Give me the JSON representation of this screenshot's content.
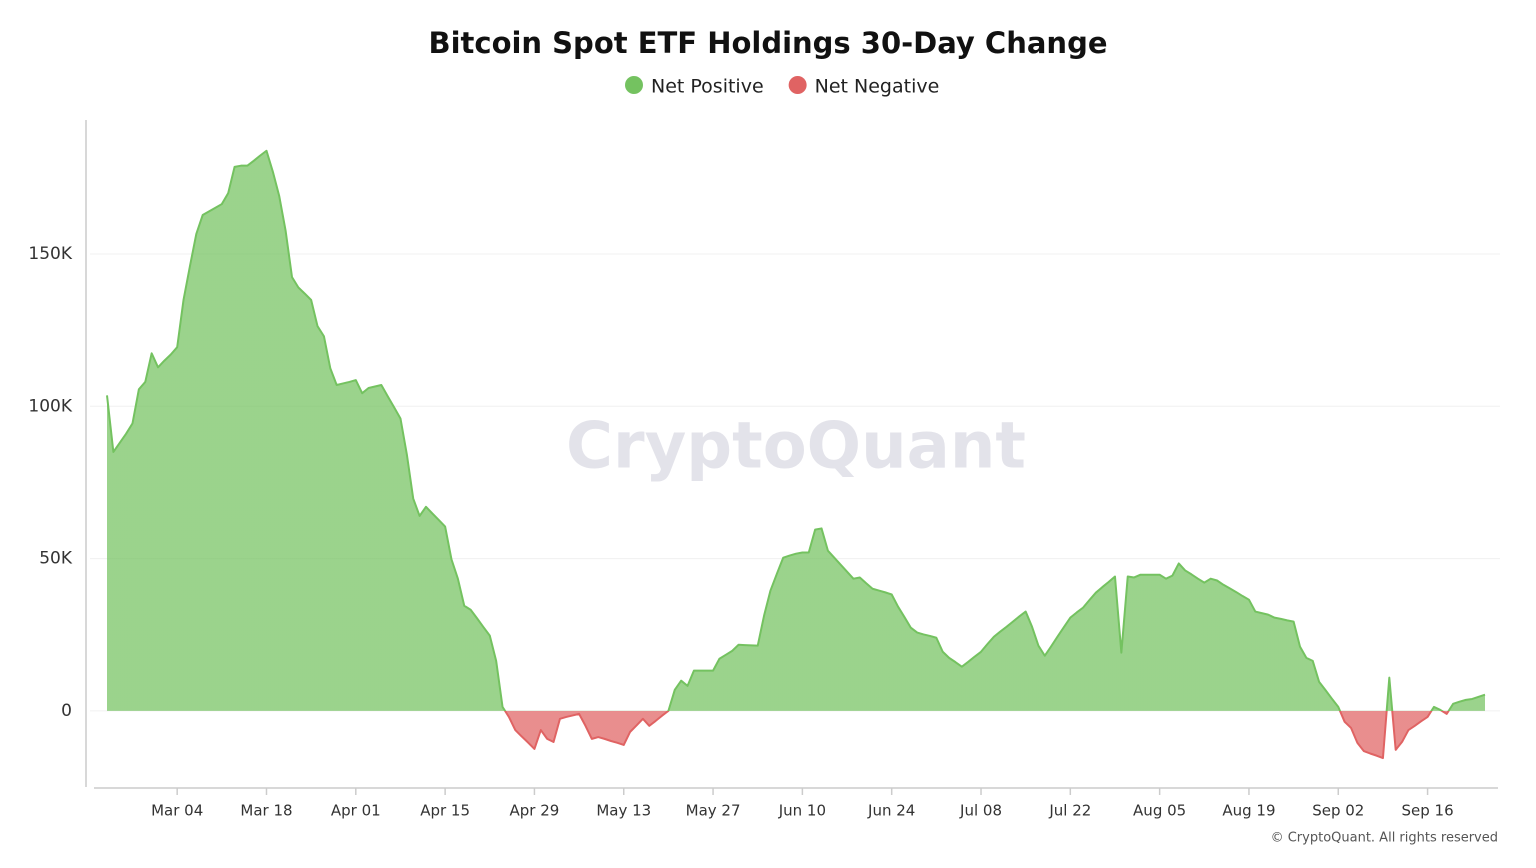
{
  "chart_data": {
    "type": "area",
    "title": "Bitcoin Spot ETF Holdings 30-Day Change",
    "legend": [
      {
        "name": "Net Positive",
        "color": "#74c260"
      },
      {
        "name": "Net Negative",
        "color": "#e06363"
      }
    ],
    "watermark": "CryptoQuant",
    "credit": "© CryptoQuant. All rights reserved",
    "categories": [
      null,
      null,
      null,
      null,
      null,
      null,
      null,
      null,
      null,
      null,
      null,
      "Mar 04",
      null,
      null,
      null,
      null,
      null,
      null,
      null,
      null,
      null,
      null,
      null,
      null,
      null,
      "Mar 18",
      null,
      null,
      null,
      null,
      null,
      null,
      null,
      null,
      null,
      null,
      null,
      null,
      null,
      "Apr 01",
      null,
      null,
      null,
      null,
      null,
      null,
      null,
      null,
      null,
      null,
      null,
      null,
      null,
      "Apr 15",
      null,
      null,
      null,
      null,
      null,
      null,
      null,
      null,
      null,
      null,
      null,
      null,
      null,
      "Apr 29",
      null,
      null,
      null,
      null,
      null,
      null,
      null,
      null,
      null,
      null,
      null,
      null,
      null,
      "May 13",
      null,
      null,
      null,
      null,
      null,
      null,
      null,
      null,
      null,
      null,
      null,
      null,
      null,
      "May 27",
      null,
      null,
      null,
      null,
      null,
      null,
      null,
      null,
      null,
      null,
      null,
      null,
      null,
      "Jun 10",
      null,
      null,
      null,
      null,
      null,
      null,
      null,
      null,
      null,
      null,
      null,
      null,
      null,
      "Jun 24",
      null,
      null,
      null,
      null,
      null,
      null,
      null,
      null,
      null,
      null,
      null,
      null,
      null,
      "Jul 08",
      null,
      null,
      null,
      null,
      null,
      null,
      null,
      null,
      null,
      null,
      null,
      null,
      null,
      "Jul 22",
      null,
      null,
      null,
      null,
      null,
      null,
      null,
      null,
      null,
      null,
      null,
      null,
      null,
      "Aug 05",
      null,
      null,
      null,
      null,
      null,
      null,
      null,
      null,
      null,
      null,
      null,
      null,
      null,
      "Aug 19",
      null,
      null,
      null,
      null,
      null,
      null,
      null,
      null,
      null,
      null,
      null,
      null,
      null,
      "Sep 02",
      null,
      null,
      null,
      null,
      null,
      null,
      null,
      null,
      null,
      null,
      null,
      null,
      null,
      "Sep 16",
      null,
      null,
      null,
      null,
      null,
      null,
      null,
      null,
      null
    ],
    "values": [
      103600,
      85000,
      88000,
      91000,
      94400,
      105600,
      108000,
      117400,
      112800,
      115000,
      117000,
      119400,
      135000,
      146000,
      156600,
      162800,
      164000,
      165200,
      166400,
      170000,
      178600,
      179000,
      179000,
      180600,
      182300,
      183900,
      177000,
      169000,
      157600,
      142400,
      139000,
      137000,
      134900,
      126300,
      123000,
      112500,
      107000,
      107500,
      108000,
      108600,
      104300,
      106000,
      106500,
      107000,
      103300,
      99700,
      96000,
      84200,
      69700,
      64000,
      67000,
      64800,
      62700,
      60500,
      49700,
      43400,
      34500,
      33200,
      30400,
      27500,
      24700,
      16400,
      1300,
      -2000,
      -6300,
      -8400,
      -10400,
      -12500,
      -6300,
      -9200,
      -10200,
      -2600,
      -2000,
      -1500,
      -1000,
      -4900,
      -9200,
      -8600,
      -9200,
      -9900,
      -10500,
      -11200,
      -6900,
      -4800,
      -2600,
      -4900,
      -3300,
      -1600,
      0,
      6900,
      9900,
      8200,
      13200,
      13200,
      13200,
      13200,
      17100,
      18400,
      19700,
      21700,
      21600,
      21500,
      21400,
      31300,
      39500,
      45000,
      50300,
      51000,
      51600,
      52000,
      52000,
      59500,
      59900,
      52600,
      50300,
      48000,
      45700,
      43400,
      43800,
      41900,
      40100,
      39500,
      38900,
      38200,
      34200,
      30800,
      27300,
      25700,
      25100,
      24600,
      24000,
      19400,
      17400,
      16000,
      14500,
      16100,
      17800,
      19400,
      21900,
      24300,
      26000,
      27600,
      29300,
      31000,
      32600,
      27600,
      21400,
      18100,
      21200,
      24400,
      27500,
      30600,
      32300,
      33900,
      36400,
      38800,
      40600,
      42300,
      44100,
      19100,
      44100,
      43800,
      44700,
      44700,
      44700,
      44700,
      43400,
      44400,
      48400,
      46100,
      44800,
      43400,
      42100,
      43400,
      42800,
      41400,
      40200,
      39000,
      37700,
      36500,
      32600,
      32100,
      31600,
      30600,
      30200,
      29700,
      29300,
      21100,
      17400,
      16400,
      9500,
      6800,
      4000,
      1300,
      -3600,
      -5600,
      -10500,
      -13200,
      -14000,
      -14700,
      -15500,
      10900,
      -12800,
      -10200,
      -6300,
      -4900,
      -3400,
      -2000,
      1300,
      300,
      -1000,
      2300,
      3000,
      3600,
      3900,
      4600,
      5300
    ],
    "ylim": [
      -25000,
      194000
    ],
    "yticks": [
      {
        "value": 0,
        "label": "0"
      },
      {
        "value": 50000,
        "label": "50K"
      },
      {
        "value": 100000,
        "label": "100K"
      },
      {
        "value": 150000,
        "label": "150K"
      }
    ],
    "grid": true
  }
}
